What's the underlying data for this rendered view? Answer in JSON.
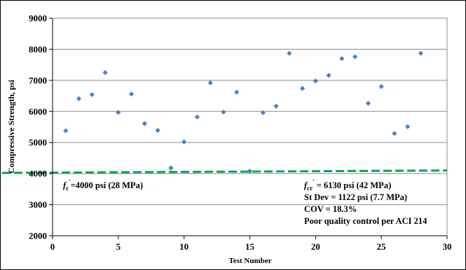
{
  "chart_data": {
    "type": "scatter",
    "xlabel": "Test Number",
    "ylabel": "Compressive Strength, psi",
    "xlim": [
      0,
      30
    ],
    "ylim": [
      2000,
      9000
    ],
    "x_ticks": [
      "0",
      "5",
      "10",
      "15",
      "20",
      "25",
      "30"
    ],
    "y_ticks": [
      "2000",
      "3000",
      "4000",
      "5000",
      "6000",
      "7000",
      "8000",
      "9000"
    ],
    "grid": "horizontal",
    "marker_color": "#4f81bd",
    "series": [
      {
        "x": [
          1,
          2,
          3,
          4,
          5,
          6,
          7,
          8,
          9,
          10,
          11,
          12,
          13,
          14,
          15,
          16,
          17,
          18,
          19,
          20,
          21,
          22,
          23,
          24,
          25,
          26,
          27,
          28
        ],
        "y": [
          5380,
          6410,
          6540,
          7250,
          5970,
          6560,
          5610,
          5390,
          4180,
          5020,
          5820,
          6920,
          5980,
          6620,
          4080,
          5960,
          6170,
          7870,
          6740,
          6980,
          7160,
          7700,
          7760,
          6260,
          6800,
          5290,
          5510,
          7870
        ]
      }
    ],
    "reference_line": {
      "color": "#00a651",
      "style": "dashed",
      "x": [
        0,
        30
      ],
      "y": [
        4030,
        4100
      ]
    },
    "annotations": {
      "fc": {
        "f": "f",
        "sub": "c",
        "sup": "'",
        "text": "=4000 psi (28 MPa)"
      },
      "fcr": {
        "f": "f",
        "sub": "cr",
        "sup": "'",
        "text": " = 6130 psi (42 MPa)"
      },
      "stdev": "St Dev = 1122 psi (7.7 MPa)",
      "cov": "COV = 18.3%",
      "quality": "Poor quality control per ACI 214"
    }
  }
}
